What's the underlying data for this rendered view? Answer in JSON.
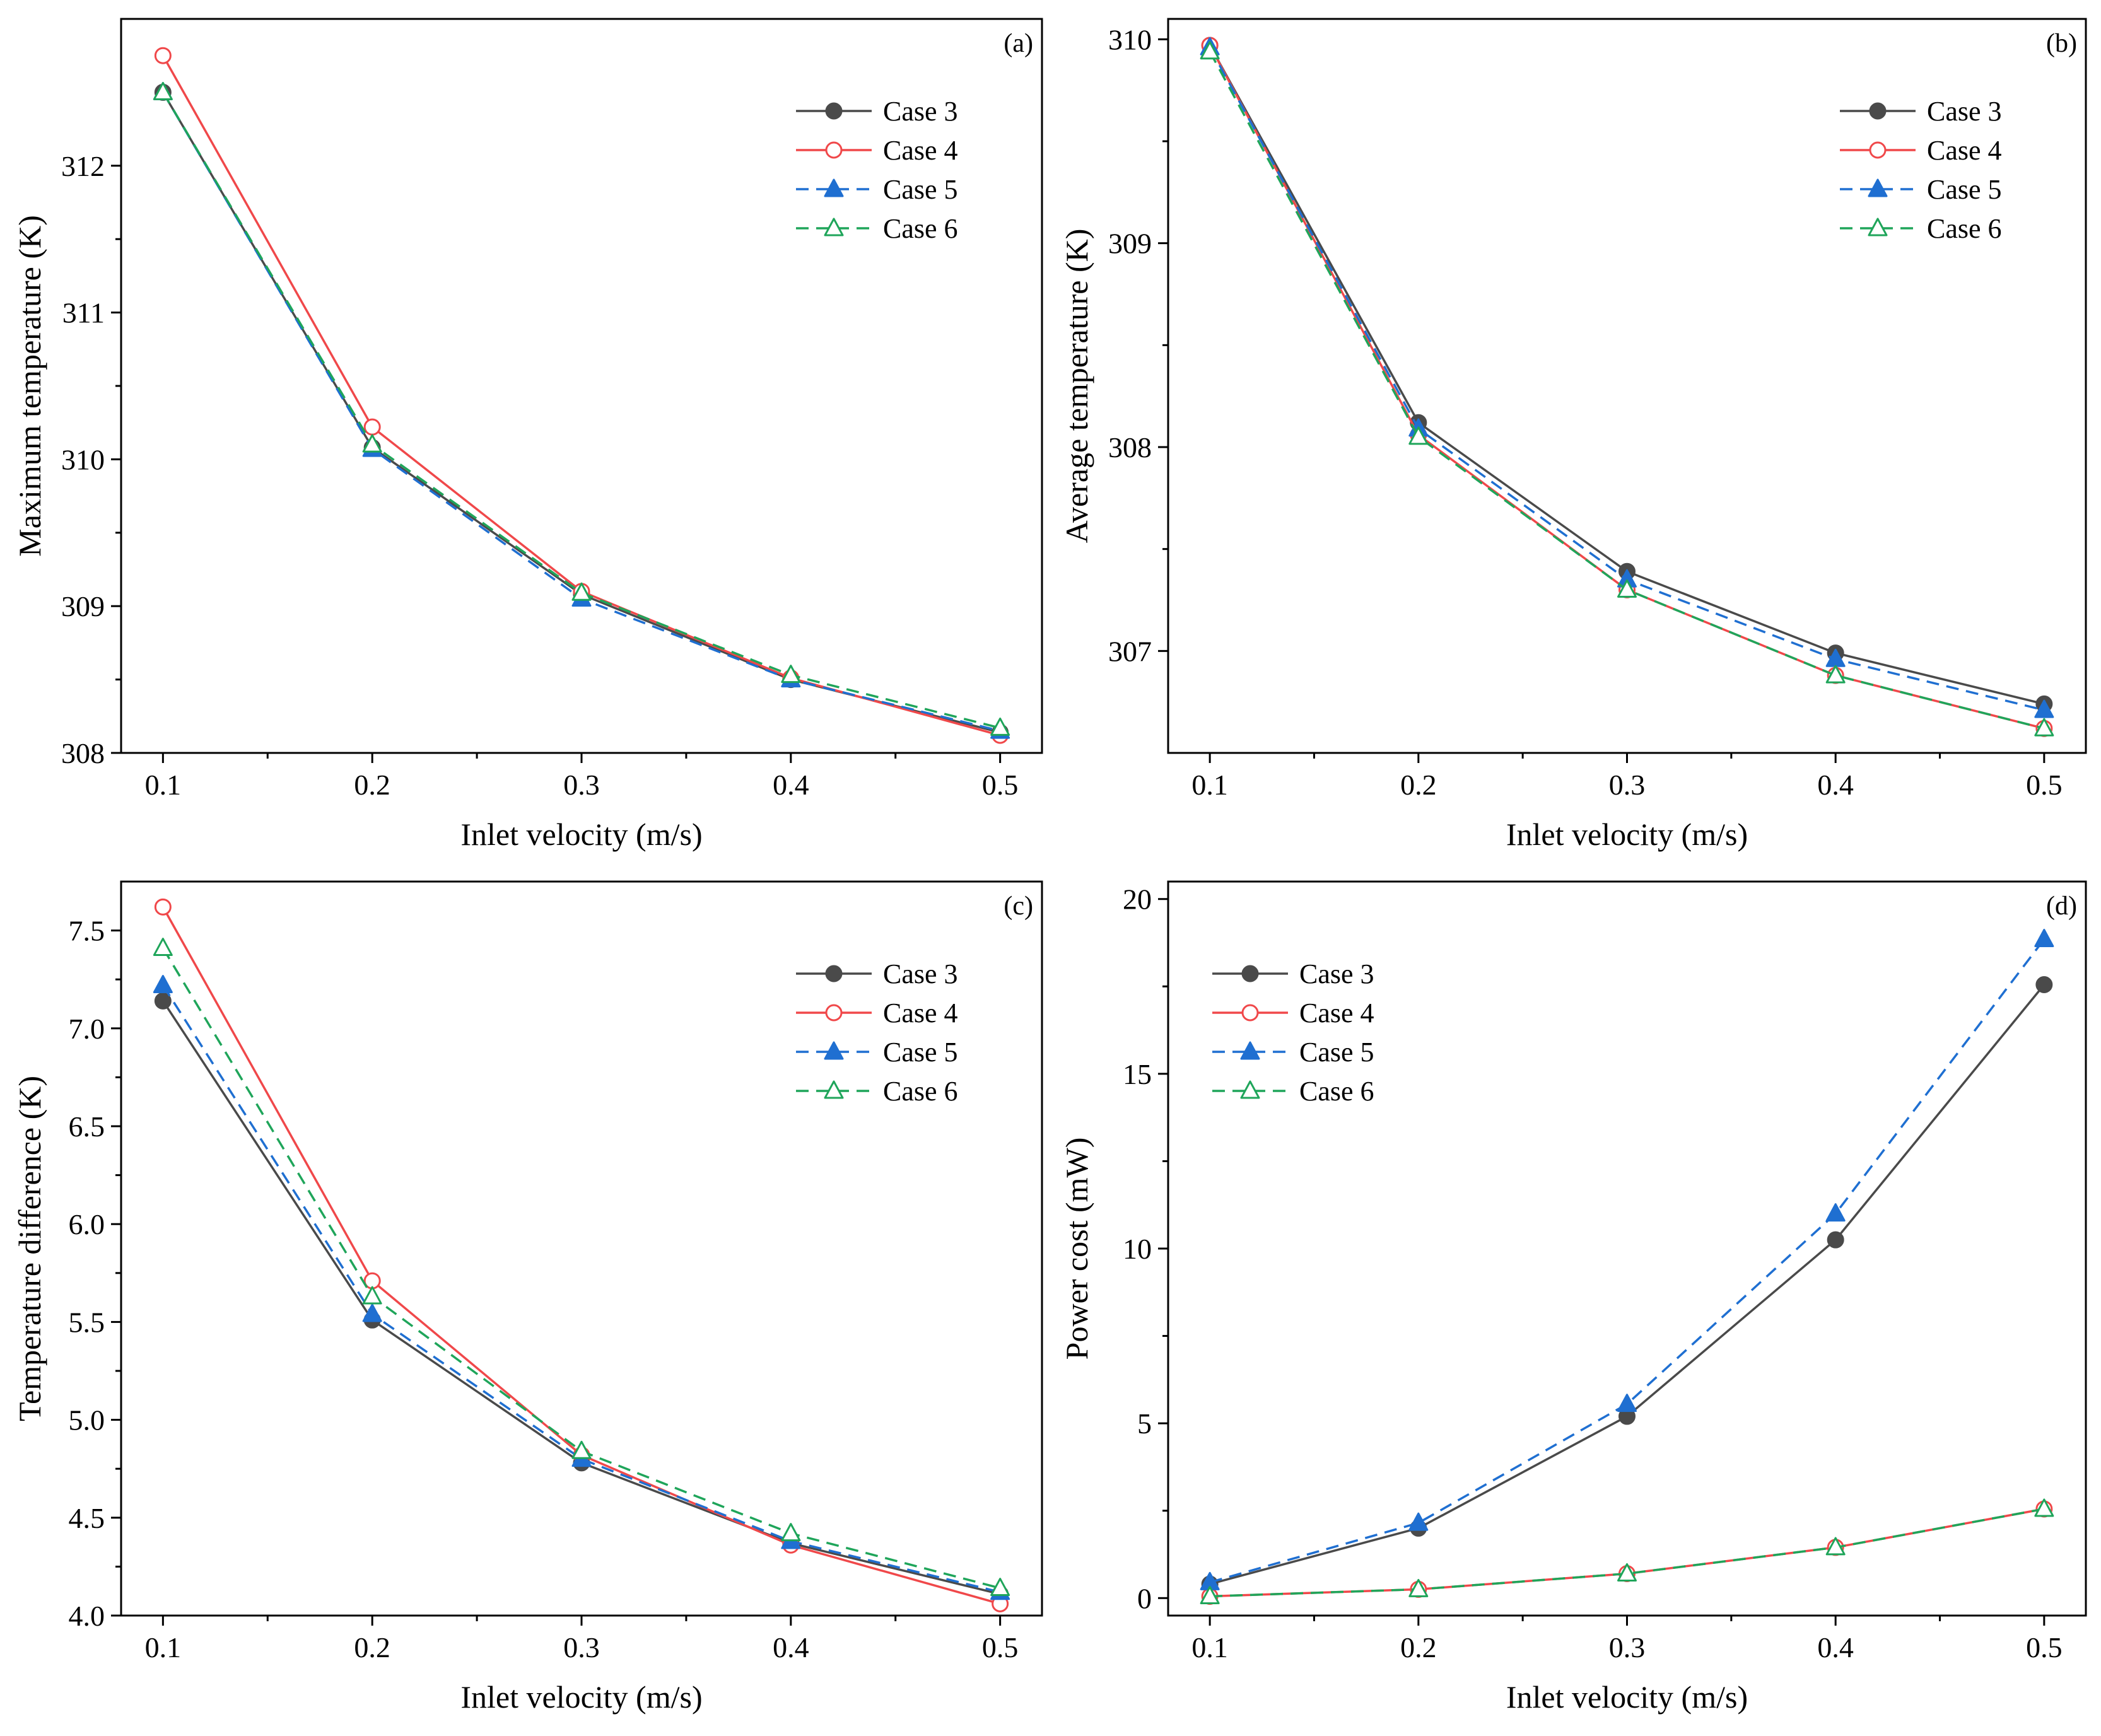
{
  "legend_labels": [
    "Case 3",
    "Case 4",
    "Case 5",
    "Case 6"
  ],
  "series_styles": [
    {
      "name": "Case 3",
      "color": "#4a4a4a",
      "dash": "solid",
      "marker": "filled-circle"
    },
    {
      "name": "Case 4",
      "color": "#f0484a",
      "dash": "solid",
      "marker": "open-circle"
    },
    {
      "name": "Case 5",
      "color": "#1f6fd1",
      "dash": "dashed",
      "marker": "filled-triangle"
    },
    {
      "name": "Case 6",
      "color": "#1fa55a",
      "dash": "dashed",
      "marker": "open-triangle"
    }
  ],
  "chart_data": [
    {
      "id": "a",
      "panel_label": "(a)",
      "type": "line",
      "xlabel": "Inlet velocity (m/s)",
      "ylabel": "Maximum temperature (K)",
      "x": [
        0.1,
        0.2,
        0.3,
        0.4,
        0.5
      ],
      "x_tick_labels": [
        "0.1",
        "0.2",
        "0.3",
        "0.4",
        "0.5"
      ],
      "xlim": [
        0.08,
        0.52
      ],
      "ylim": [
        308.0,
        313.0
      ],
      "y_ticks": [
        308,
        309,
        310,
        311,
        312
      ],
      "y_tick_labels": [
        "308",
        "309",
        "310",
        "311",
        "312"
      ],
      "legend_position": "top-right",
      "series": [
        {
          "name": "Case 3",
          "values": [
            312.5,
            310.08,
            309.08,
            308.5,
            308.14
          ]
        },
        {
          "name": "Case 4",
          "values": [
            312.75,
            310.22,
            309.1,
            308.51,
            308.12
          ]
        },
        {
          "name": "Case 5",
          "values": [
            312.5,
            310.07,
            309.05,
            308.5,
            308.15
          ]
        },
        {
          "name": "Case 6",
          "values": [
            312.5,
            310.1,
            309.09,
            308.53,
            308.17
          ]
        }
      ]
    },
    {
      "id": "b",
      "panel_label": "(b)",
      "type": "line",
      "xlabel": "Inlet velocity (m/s)",
      "ylabel": "Average temperature (K)",
      "x": [
        0.1,
        0.2,
        0.3,
        0.4,
        0.5
      ],
      "x_tick_labels": [
        "0.1",
        "0.2",
        "0.3",
        "0.4",
        "0.5"
      ],
      "xlim": [
        0.08,
        0.52
      ],
      "ylim": [
        306.5,
        310.1
      ],
      "y_ticks": [
        307,
        308,
        309,
        310
      ],
      "y_tick_labels": [
        "307",
        "308",
        "309",
        "310"
      ],
      "legend_position": "top-right",
      "series": [
        {
          "name": "Case 3",
          "values": [
            309.97,
            308.12,
            307.39,
            306.99,
            306.74
          ]
        },
        {
          "name": "Case 4",
          "values": [
            309.97,
            308.06,
            307.3,
            306.88,
            306.62
          ]
        },
        {
          "name": "Case 5",
          "values": [
            309.96,
            308.09,
            307.35,
            306.96,
            306.71
          ]
        },
        {
          "name": "Case 6",
          "values": [
            309.94,
            308.05,
            307.3,
            306.88,
            306.62
          ]
        }
      ]
    },
    {
      "id": "c",
      "panel_label": "(c)",
      "type": "line",
      "xlabel": "Inlet velocity (m/s)",
      "ylabel": "Temperature difference (K)",
      "x": [
        0.1,
        0.2,
        0.3,
        0.4,
        0.5
      ],
      "x_tick_labels": [
        "0.1",
        "0.2",
        "0.3",
        "0.4",
        "0.5"
      ],
      "xlim": [
        0.08,
        0.52
      ],
      "ylim": [
        4.0,
        7.75
      ],
      "y_ticks": [
        4.0,
        4.5,
        5.0,
        5.5,
        6.0,
        6.5,
        7.0,
        7.5
      ],
      "y_tick_labels": [
        "4.0",
        "4.5",
        "5.0",
        "5.5",
        "6.0",
        "6.5",
        "7.0",
        "7.5"
      ],
      "legend_position": "top-right",
      "series": [
        {
          "name": "Case 3",
          "values": [
            7.14,
            5.51,
            4.78,
            4.37,
            4.11
          ]
        },
        {
          "name": "Case 4",
          "values": [
            7.62,
            5.71,
            4.82,
            4.36,
            4.06
          ]
        },
        {
          "name": "Case 5",
          "values": [
            7.22,
            5.54,
            4.8,
            4.38,
            4.12
          ]
        },
        {
          "name": "Case 6",
          "values": [
            7.41,
            5.63,
            4.84,
            4.42,
            4.14
          ]
        }
      ]
    },
    {
      "id": "d",
      "panel_label": "(d)",
      "type": "line",
      "xlabel": "Inlet velocity (m/s)",
      "ylabel": "Power cost (mW)",
      "x": [
        0.1,
        0.2,
        0.3,
        0.4,
        0.5
      ],
      "x_tick_labels": [
        "0.1",
        "0.2",
        "0.3",
        "0.4",
        "0.5"
      ],
      "xlim": [
        0.08,
        0.52
      ],
      "ylim": [
        -0.5,
        20.5
      ],
      "y_ticks": [
        0,
        5,
        10,
        15,
        20
      ],
      "y_tick_labels": [
        "0",
        "5",
        "10",
        "15",
        "20"
      ],
      "legend_position": "top-left",
      "series": [
        {
          "name": "Case 3",
          "values": [
            0.4,
            2.0,
            5.2,
            10.25,
            17.55
          ]
        },
        {
          "name": "Case 4",
          "values": [
            0.05,
            0.25,
            0.7,
            1.45,
            2.55
          ]
        },
        {
          "name": "Case 5",
          "values": [
            0.45,
            2.15,
            5.55,
            11.0,
            18.85
          ]
        },
        {
          "name": "Case 6",
          "values": [
            0.05,
            0.25,
            0.7,
            1.45,
            2.55
          ]
        }
      ]
    }
  ]
}
